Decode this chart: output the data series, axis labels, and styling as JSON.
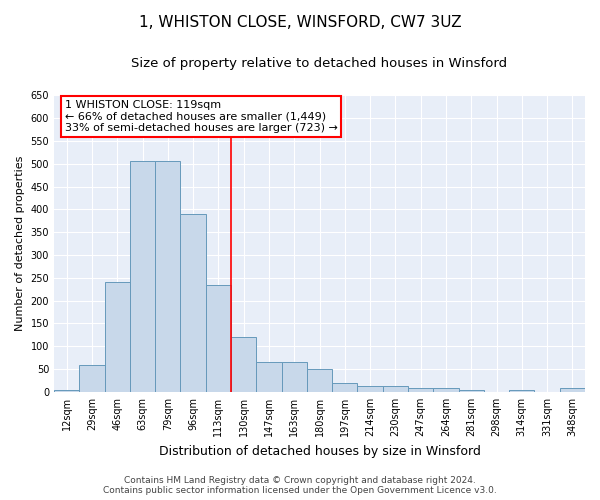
{
  "title": "1, WHISTON CLOSE, WINSFORD, CW7 3UZ",
  "subtitle": "Size of property relative to detached houses in Winsford",
  "xlabel": "Distribution of detached houses by size in Winsford",
  "ylabel": "Number of detached properties",
  "categories": [
    "12sqm",
    "29sqm",
    "46sqm",
    "63sqm",
    "79sqm",
    "96sqm",
    "113sqm",
    "130sqm",
    "147sqm",
    "163sqm",
    "180sqm",
    "197sqm",
    "214sqm",
    "230sqm",
    "247sqm",
    "264sqm",
    "281sqm",
    "298sqm",
    "314sqm",
    "331sqm",
    "348sqm"
  ],
  "values": [
    5,
    60,
    240,
    505,
    505,
    390,
    235,
    120,
    65,
    65,
    50,
    20,
    12,
    12,
    8,
    8,
    5,
    0,
    5,
    0,
    8
  ],
  "bar_color": "#c8d8ea",
  "bar_edge_color": "#6699bb",
  "annotation_text_lines": [
    "1 WHISTON CLOSE: 119sqm",
    "← 66% of detached houses are smaller (1,449)",
    "33% of semi-detached houses are larger (723) →"
  ],
  "annotation_box_color": "white",
  "annotation_box_edge_color": "red",
  "vline_color": "red",
  "vline_x": 6.5,
  "ylim": [
    0,
    650
  ],
  "yticks": [
    0,
    50,
    100,
    150,
    200,
    250,
    300,
    350,
    400,
    450,
    500,
    550,
    600,
    650
  ],
  "background_color": "#e8eef8",
  "grid_color": "#ffffff",
  "footer_line1": "Contains HM Land Registry data © Crown copyright and database right 2024.",
  "footer_line2": "Contains public sector information licensed under the Open Government Licence v3.0.",
  "title_fontsize": 11,
  "subtitle_fontsize": 9.5,
  "xlabel_fontsize": 9,
  "ylabel_fontsize": 8,
  "tick_fontsize": 7,
  "annotation_fontsize": 8,
  "footer_fontsize": 6.5
}
